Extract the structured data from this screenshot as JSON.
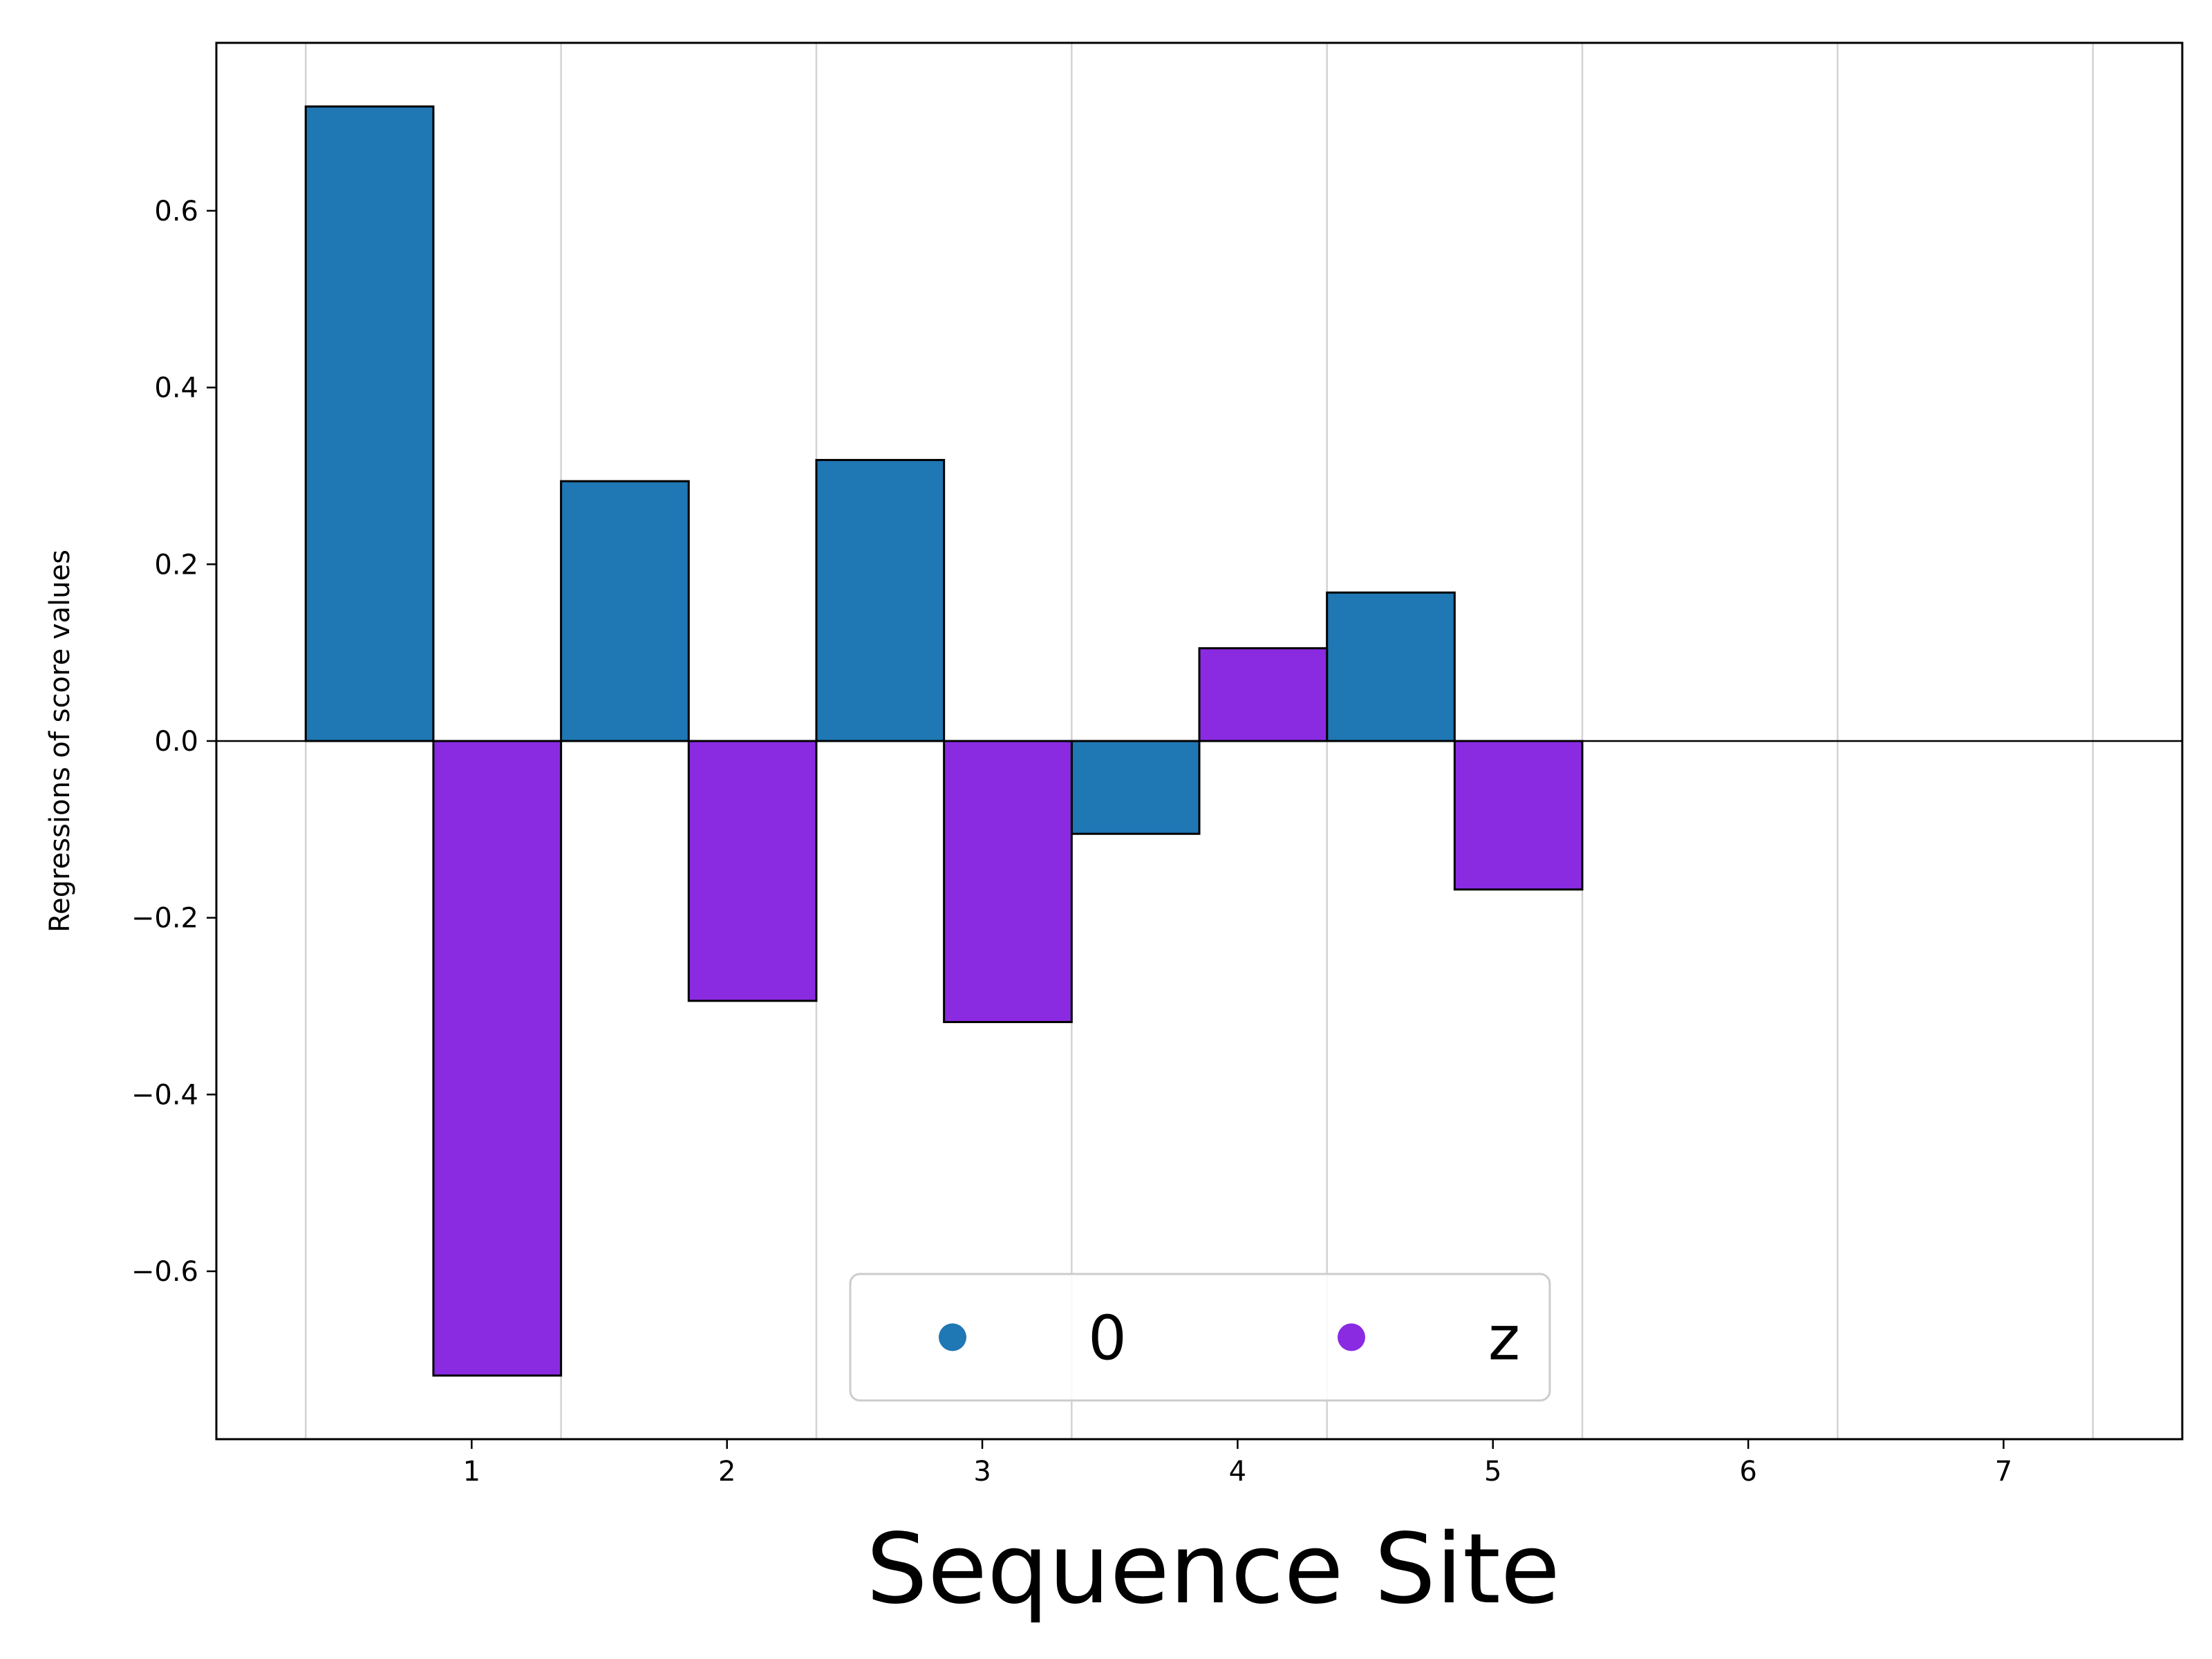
{
  "chart_data": {
    "type": "bar",
    "title": "",
    "xlabel": "Sequence Site",
    "ylabel": "Regressions of score values",
    "xticks": [
      1,
      2,
      3,
      4,
      5,
      6,
      7
    ],
    "yticks": [
      -0.6,
      -0.4,
      -0.2,
      0.0,
      0.2,
      0.4,
      0.6
    ],
    "ytick_labels": [
      "−0.6",
      "−0.4",
      "−0.2",
      "0.0",
      "0.2",
      "0.4",
      "0.6"
    ],
    "xlim": [
      0.0,
      7.7
    ],
    "ylim": [
      -0.79,
      0.79
    ],
    "grid": "vertical",
    "legend_position": "bottom-center",
    "series": [
      {
        "name": "0",
        "color": "#1f77b4",
        "x": [
          0.6,
          1.6,
          2.6,
          3.6,
          4.6
        ],
        "values": [
          0.718,
          0.294,
          0.318,
          -0.105,
          0.168
        ]
      },
      {
        "name": "z",
        "color": "#8a2be2",
        "x": [
          1.1,
          2.1,
          3.1,
          4.1,
          5.1
        ],
        "values": [
          -0.718,
          -0.294,
          -0.318,
          0.105,
          -0.168
        ]
      }
    ]
  }
}
